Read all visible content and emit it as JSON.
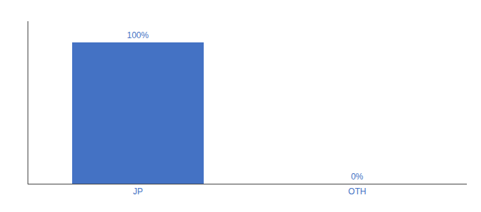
{
  "chart_data": {
    "type": "bar",
    "categories": [
      "JP",
      "OTH"
    ],
    "values": [
      100,
      0
    ],
    "value_labels": [
      "100%",
      "0%"
    ],
    "data_labels": true,
    "color": "#4472c4",
    "ylim": [
      0,
      115
    ],
    "grid": false,
    "tick_labels": "x"
  }
}
